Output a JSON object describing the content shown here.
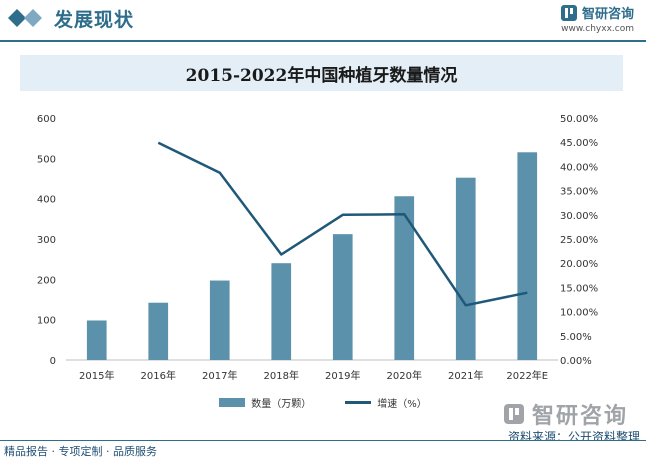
{
  "header": {
    "title": "发展现状",
    "brand_name": "智研咨询",
    "brand_url": "www.chyxx.com"
  },
  "chart_data": {
    "type": "bar",
    "title": "2015-2022年中国种植牙数量情况",
    "categories": [
      "2015年",
      "2016年",
      "2017年",
      "2018年",
      "2019年",
      "2020年",
      "2021年",
      "2022年E"
    ],
    "series": [
      {
        "name": "数量（万颗）",
        "type": "bar",
        "axis": "left",
        "color": "#5b91aa",
        "values": [
          98,
          142,
          197,
          240,
          312,
          406,
          452,
          515
        ]
      },
      {
        "name": "增速（%）",
        "type": "line",
        "axis": "right",
        "color": "#1f5878",
        "values": [
          null,
          44.9,
          38.7,
          21.8,
          30.0,
          30.1,
          11.3,
          13.9
        ]
      }
    ],
    "ylim_left": [
      0,
      600
    ],
    "yticks_left": [
      "0",
      "100",
      "200",
      "300",
      "400",
      "500",
      "600"
    ],
    "ylim_right": [
      0,
      50
    ],
    "yticks_right": [
      "0.00%",
      "5.00%",
      "10.00%",
      "15.00%",
      "20.00%",
      "25.00%",
      "30.00%",
      "35.00%",
      "40.00%",
      "45.00%",
      "50.00%"
    ],
    "legend_position": "bottom",
    "grid": false
  },
  "source": "资料来源：公开资料整理",
  "footer_brand": "智研咨询",
  "footer": "精品报告 · 专项定制 · 品质服务"
}
